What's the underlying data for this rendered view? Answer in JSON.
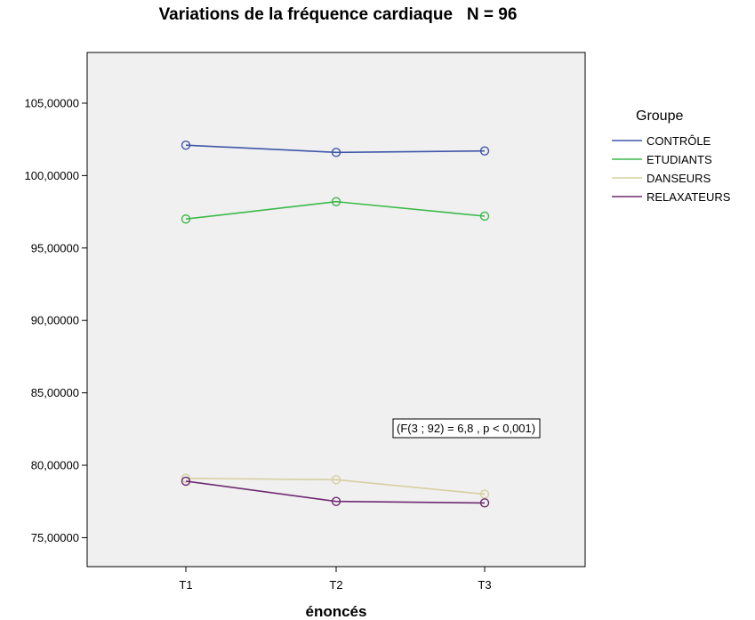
{
  "chart_data": {
    "type": "line",
    "title": "Variations de la fréquence cardiaque   N = 96",
    "xlabel": "énoncés",
    "ylabel": "",
    "categories": [
      "T1",
      "T2",
      "T3"
    ],
    "ylim": [
      73.0,
      108.5
    ],
    "y_ticks": [
      75,
      80,
      85,
      90,
      95,
      100,
      105
    ],
    "y_tick_labels": [
      "75,00000",
      "80,00000",
      "85,00000",
      "90,00000",
      "95,00000",
      "100,00000",
      "105,00000"
    ],
    "grid": false,
    "plot_background": "#f0f0f0",
    "legend": {
      "title": "Groupe",
      "position": "right"
    },
    "annotation": "(F(3 ; 92) = 6,8 ,  p < 0,001)",
    "series": [
      {
        "name": "CONTRÔLE",
        "color": "#3e57a8",
        "values": [
          102.1,
          101.6,
          101.7
        ]
      },
      {
        "name": "ETUDIANTS",
        "color": "#3cb94a",
        "values": [
          97.0,
          98.2,
          97.2
        ]
      },
      {
        "name": "DANSEURS",
        "color": "#d6cfa0",
        "values": [
          79.1,
          79.0,
          78.0
        ]
      },
      {
        "name": "RELAXATEURS",
        "color": "#6e2a72",
        "values": [
          78.9,
          77.5,
          77.4
        ]
      }
    ]
  }
}
